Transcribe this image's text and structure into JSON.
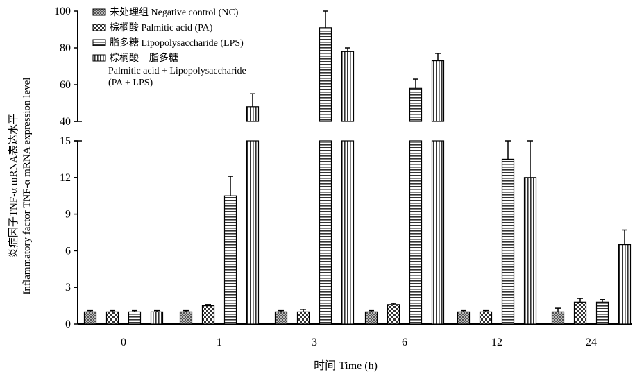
{
  "chart_data": {
    "type": "bar",
    "xlabel": "时间  Time (h)",
    "ylabel_cn": "炎症因子TNF-α mRNA表达水平",
    "ylabel_en": "Inflammatory factor TNF-α mRNA expression level",
    "categories": [
      "0",
      "1",
      "3",
      "6",
      "12",
      "24"
    ],
    "ylim_lower": [
      0,
      15
    ],
    "ylim_upper": [
      40,
      100
    ],
    "yticks_lower": [
      "0",
      "3",
      "6",
      "9",
      "12",
      "15"
    ],
    "yticks_upper": [
      "40",
      "60",
      "80",
      "100"
    ],
    "legend_position": "top-left",
    "series": [
      {
        "name": "未处理组  Negative control (NC)",
        "pattern": "dots-dark",
        "values": [
          1.0,
          1.0,
          1.0,
          1.0,
          1.0,
          1.0
        ],
        "errors": [
          0.1,
          0.1,
          0.1,
          0.1,
          0.1,
          0.3
        ]
      },
      {
        "name": "棕榈酸  Palmitic acid (PA)",
        "pattern": "checker",
        "values": [
          1.0,
          1.5,
          1.0,
          1.6,
          1.0,
          1.8
        ],
        "errors": [
          0.1,
          0.1,
          0.2,
          0.1,
          0.1,
          0.3
        ]
      },
      {
        "name": "脂多糖  Lipopolysaccharide (LPS)",
        "pattern": "h-stripes",
        "values": [
          1.0,
          10.5,
          91,
          58,
          13.5,
          1.8
        ],
        "errors": [
          0.1,
          1.6,
          9,
          5,
          1.5,
          0.2
        ]
      },
      {
        "name": "棕榈酸 + 脂多糖",
        "name_en": "Palmitic acid + Lipopolysaccharide",
        "name_note": "(PA + LPS)",
        "pattern": "v-stripes",
        "values": [
          1.0,
          48,
          78,
          73,
          12.0,
          6.5
        ],
        "errors": [
          0.1,
          7,
          2,
          4,
          3,
          1.2
        ]
      }
    ]
  }
}
